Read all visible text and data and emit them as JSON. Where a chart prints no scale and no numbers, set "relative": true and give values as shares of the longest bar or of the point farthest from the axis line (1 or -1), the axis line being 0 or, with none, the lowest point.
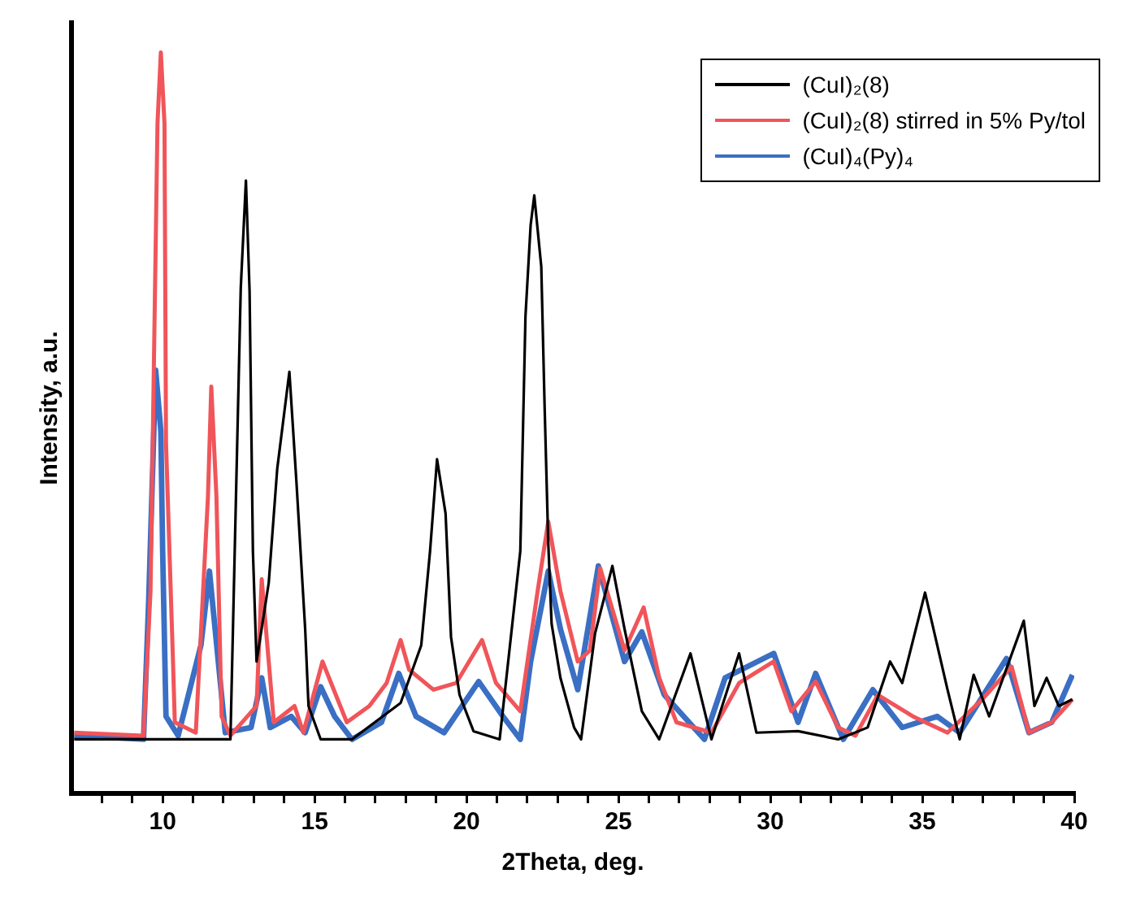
{
  "chart_data": {
    "type": "line",
    "xlabel": "2Theta, deg.",
    "ylabel": "Intensity, a.u.",
    "relative": true,
    "xlim": [
      7,
      40
    ],
    "xticks": [
      {
        "value": 8,
        "label": null
      },
      {
        "value": 9,
        "label": null
      },
      10,
      {
        "value": 11,
        "label": null
      },
      {
        "value": 12,
        "label": null
      },
      {
        "value": 13,
        "label": null
      },
      {
        "value": 14,
        "label": null
      },
      15,
      {
        "value": 16,
        "label": null
      },
      {
        "value": 17,
        "label": null
      },
      {
        "value": 18,
        "label": null
      },
      {
        "value": 19,
        "label": null
      },
      20,
      {
        "value": 21,
        "label": null
      },
      {
        "value": 22,
        "label": null
      },
      {
        "value": 23,
        "label": null
      },
      {
        "value": 24,
        "label": null
      },
      25,
      {
        "value": 26,
        "label": null
      },
      {
        "value": 27,
        "label": null
      },
      {
        "value": 28,
        "label": null
      },
      {
        "value": 29,
        "label": null
      },
      30,
      {
        "value": 31,
        "label": null
      },
      {
        "value": 32,
        "label": null
      },
      {
        "value": 33,
        "label": null
      },
      {
        "value": 34,
        "label": null
      },
      35,
      {
        "value": 36,
        "label": null
      },
      {
        "value": 37,
        "label": null
      },
      {
        "value": 38,
        "label": null
      },
      {
        "value": 39,
        "label": null
      },
      40
    ],
    "grid": false,
    "legend": "top right",
    "marker": "none",
    "line_style": "solid",
    "series": [
      {
        "name": "(CuI)₂(8)",
        "color": "#000000",
        "x": [
          7.09,
          9.37,
          12.23,
          12.57,
          12.74,
          12.86,
          12.97,
          13.09,
          13.49,
          13.77,
          14.17,
          14.4,
          14.69,
          14.8,
          15.2,
          16.23,
          17.83,
          18.51,
          18.8,
          19.03,
          19.31,
          19.49,
          19.77,
          20.23,
          21.09,
          21.77,
          21.94,
          22.11,
          22.23,
          22.46,
          22.57,
          22.69,
          22.8,
          23.09,
          23.54,
          23.77,
          24.23,
          24.8,
          25.2,
          25.77,
          26.34,
          27.37,
          28.06,
          28.97,
          29.54,
          30.91,
          32.23,
          33.2,
          33.94,
          34.34,
          35.09,
          35.83,
          36.23,
          36.69,
          37.2,
          38.34,
          38.69,
          39.09,
          39.49,
          39.94
        ],
        "values": [
          0.073,
          0.073,
          0.073,
          0.682,
          0.827,
          0.678,
          0.327,
          0.178,
          0.284,
          0.438,
          0.569,
          0.422,
          0.222,
          0.118,
          0.073,
          0.073,
          0.122,
          0.2,
          0.327,
          0.451,
          0.378,
          0.211,
          0.133,
          0.084,
          0.073,
          0.327,
          0.644,
          0.767,
          0.807,
          0.711,
          0.522,
          0.338,
          0.229,
          0.156,
          0.089,
          0.073,
          0.216,
          0.307,
          0.222,
          0.111,
          0.073,
          0.189,
          0.073,
          0.189,
          0.082,
          0.084,
          0.073,
          0.089,
          0.178,
          0.149,
          0.271,
          0.14,
          0.073,
          0.16,
          0.104,
          0.233,
          0.118,
          0.156,
          0.118,
          0.127
        ]
      },
      {
        "name": "(CuI)₂(8) stirred in 5% Py/tol",
        "color": "#f0555a",
        "x": [
          7.09,
          9.37,
          9.6,
          9.83,
          9.94,
          10.06,
          10.11,
          10.34,
          10.4,
          11.09,
          11.49,
          11.6,
          11.77,
          11.94,
          12.23,
          13.09,
          13.26,
          13.49,
          13.66,
          14.34,
          14.63,
          15.26,
          16.06,
          16.8,
          17.37,
          17.83,
          18.11,
          18.91,
          19.66,
          20.51,
          20.97,
          21.77,
          22.34,
          22.69,
          23.09,
          23.66,
          24.06,
          24.4,
          25.2,
          25.83,
          26.34,
          26.91,
          28.06,
          28.97,
          30.11,
          30.69,
          31.49,
          32.23,
          32.8,
          33.54,
          34.69,
          35.83,
          36.97,
          37.94,
          38.51,
          39.26,
          39.94
        ],
        "values": [
          0.082,
          0.078,
          0.273,
          0.904,
          1.0,
          0.904,
          0.473,
          0.178,
          0.096,
          0.082,
          0.4,
          0.549,
          0.4,
          0.104,
          0.078,
          0.118,
          0.289,
          0.178,
          0.096,
          0.118,
          0.082,
          0.178,
          0.096,
          0.118,
          0.149,
          0.207,
          0.167,
          0.14,
          0.149,
          0.207,
          0.149,
          0.111,
          0.273,
          0.367,
          0.273,
          0.178,
          0.193,
          0.304,
          0.193,
          0.251,
          0.156,
          0.096,
          0.082,
          0.149,
          0.178,
          0.111,
          0.151,
          0.089,
          0.078,
          0.133,
          0.104,
          0.082,
          0.127,
          0.171,
          0.082,
          0.096,
          0.127
        ]
      },
      {
        "name": "(CuI)₄(Py)₄",
        "color": "#3a6fc4",
        "x": [
          7.09,
          9.37,
          9.54,
          9.77,
          9.94,
          10.0,
          10.11,
          10.51,
          11.26,
          11.54,
          11.83,
          12.06,
          12.91,
          13.26,
          13.54,
          14.23,
          14.69,
          15.2,
          15.66,
          16.23,
          17.2,
          17.77,
          18.34,
          19.26,
          20.4,
          21.2,
          21.77,
          22.11,
          22.69,
          23.09,
          23.66,
          24.34,
          25.2,
          25.77,
          26.51,
          27.83,
          28.51,
          30.11,
          30.91,
          31.49,
          32.4,
          33.37,
          34.34,
          35.49,
          36.23,
          37.77,
          38.51,
          39.26,
          39.94
        ],
        "values": [
          0.078,
          0.073,
          0.26,
          0.571,
          0.489,
          0.327,
          0.104,
          0.078,
          0.2,
          0.3,
          0.178,
          0.082,
          0.089,
          0.156,
          0.089,
          0.104,
          0.082,
          0.144,
          0.104,
          0.073,
          0.096,
          0.162,
          0.104,
          0.082,
          0.151,
          0.104,
          0.073,
          0.178,
          0.3,
          0.222,
          0.14,
          0.307,
          0.178,
          0.218,
          0.133,
          0.073,
          0.156,
          0.189,
          0.096,
          0.162,
          0.073,
          0.14,
          0.089,
          0.104,
          0.082,
          0.182,
          0.082,
          0.096,
          0.16
        ]
      }
    ]
  }
}
